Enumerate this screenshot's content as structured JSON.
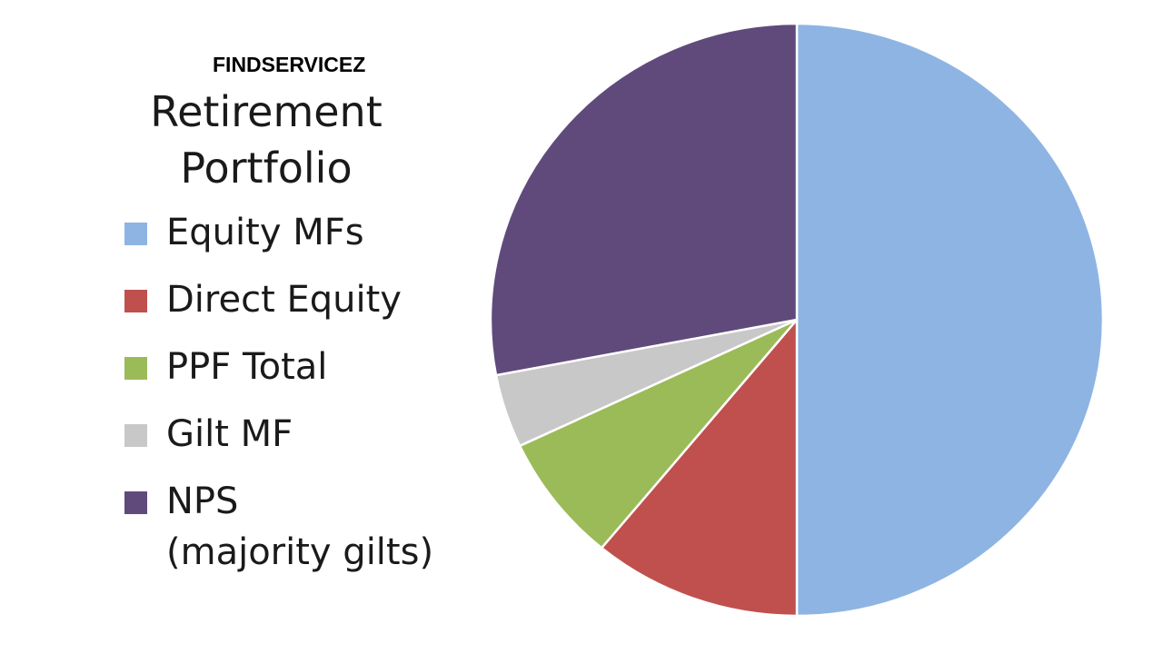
{
  "watermark": "FINDSERVICEZ",
  "chart_data": {
    "type": "pie",
    "title_lines": [
      "Retirement",
      "Portfolio"
    ],
    "legend_position": "left",
    "start": "top, clockwise",
    "slices": [
      {
        "label": "Equity MFs",
        "value": 50,
        "color": "#8EB4E3"
      },
      {
        "label": "Direct Equity",
        "value": 11,
        "color": "#C0504D"
      },
      {
        "label": "PPF Total",
        "value": 7,
        "color": "#9BBB59"
      },
      {
        "label": "Gilt MF",
        "value": 4,
        "color": "#C8C8C8"
      },
      {
        "label": "NPS",
        "label_line2": "(majority gilts)",
        "value": 28,
        "color": "#604A7B"
      }
    ]
  }
}
